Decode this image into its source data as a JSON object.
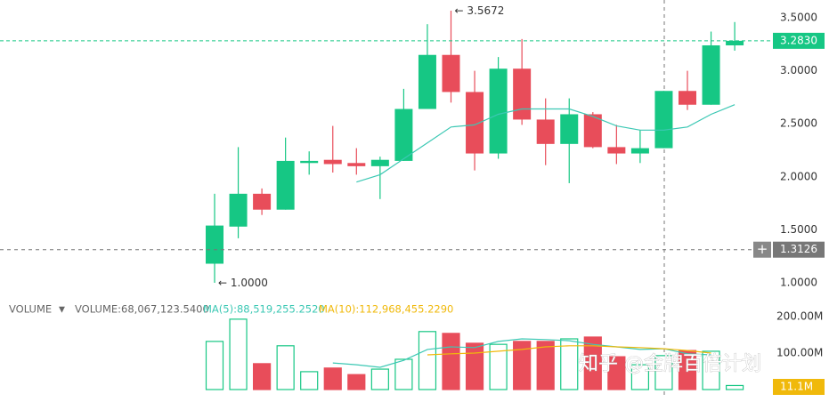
{
  "chart_data": [
    {
      "type": "candlestick",
      "open": [
        1.18,
        1.53,
        1.84,
        1.69,
        2.13,
        2.16,
        2.13,
        2.1,
        2.15,
        2.64,
        3.15,
        2.8,
        2.22,
        3.02,
        2.54,
        2.31,
        2.59,
        2.28,
        2.22,
        2.27,
        2.81,
        2.68,
        3.24
      ],
      "high": [
        1.84,
        2.28,
        1.89,
        2.37,
        2.24,
        2.48,
        2.27,
        2.19,
        2.83,
        3.44,
        3.5672,
        3.0,
        3.13,
        3.3,
        2.74,
        2.74,
        2.61,
        2.49,
        2.44,
        2.81,
        3.0,
        3.37,
        3.46
      ],
      "low": [
        1.0,
        1.42,
        1.64,
        1.69,
        2.02,
        2.04,
        2.02,
        1.79,
        2.15,
        2.64,
        2.7,
        2.06,
        2.17,
        2.49,
        2.11,
        1.94,
        2.27,
        2.12,
        2.13,
        2.27,
        2.63,
        2.68,
        3.19
      ],
      "close": [
        1.54,
        1.84,
        1.69,
        2.15,
        2.15,
        2.12,
        2.1,
        2.16,
        2.64,
        3.15,
        2.8,
        2.22,
        3.02,
        2.54,
        2.31,
        2.59,
        2.28,
        2.22,
        2.27,
        2.81,
        2.68,
        3.24,
        3.283
      ],
      "ma": [
        null,
        null,
        null,
        null,
        null,
        null,
        1.95,
        2.02,
        2.17,
        2.32,
        2.47,
        2.49,
        2.59,
        2.64,
        2.64,
        2.64,
        2.57,
        2.48,
        2.44,
        2.44,
        2.47,
        2.59,
        2.68
      ],
      "ma_color": "#3cc8b4",
      "up_color": "#16c784",
      "down_color": "#e84d5a",
      "ylim": [
        0.857,
        3.668
      ],
      "yticks": [
        {
          "value": 1.0,
          "label": "1.0000"
        },
        {
          "value": 1.5,
          "label": "1.5000"
        },
        {
          "value": 2.0,
          "label": "2.0000"
        },
        {
          "value": 2.5,
          "label": "2.5000"
        },
        {
          "value": 3.0,
          "label": "3.0000"
        },
        {
          "value": 3.5,
          "label": "3.5000"
        }
      ],
      "max_label": {
        "value": 3.5672,
        "label": "3.5672"
      },
      "min_label": {
        "value": 1.0,
        "label": "1.0000"
      },
      "last_price": {
        "value": 3.283,
        "label": "3.2830"
      },
      "crosshair_price": {
        "value": 1.3126,
        "label": "1.3126"
      }
    },
    {
      "type": "bar",
      "title": "VOLUME",
      "volume_label": "VOLUME:68,067,123.5400",
      "values": [
        132,
        193,
        71,
        120,
        49,
        59,
        41,
        56,
        83,
        159,
        154,
        127,
        124,
        132,
        132,
        139,
        144,
        90,
        68,
        93,
        107,
        105,
        11.1
      ],
      "series": [
        {
          "name": "MA(5):88,519,255.2520",
          "color": "#3cc8b4",
          "values": [
            null,
            null,
            null,
            null,
            null,
            73,
            68,
            61,
            80,
            110,
            117,
            115,
            132,
            139,
            137,
            134,
            124,
            117,
            110,
            112,
            98,
            95,
            null
          ]
        },
        {
          "name": "MA(10):112,968,455.2290",
          "color": "#f0b90b",
          "values": [
            null,
            null,
            null,
            null,
            null,
            null,
            null,
            null,
            null,
            95,
            98,
            100,
            105,
            110,
            117,
            120,
            120,
            117,
            115,
            112,
            107,
            100,
            null
          ]
        }
      ],
      "ylim": [
        0,
        219.5
      ],
      "yticks": [
        {
          "value": 100,
          "label": "100.00M"
        },
        {
          "value": 200,
          "label": "200.00M"
        }
      ],
      "last_value": {
        "value": 11.1,
        "label": "11.1M"
      }
    }
  ]
}
